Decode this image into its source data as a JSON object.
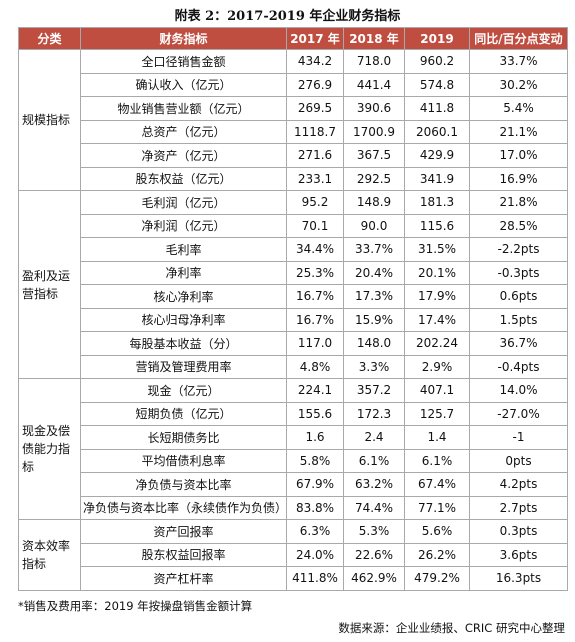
{
  "title": "附表 2：2017-2019 年企业财务指标",
  "table": {
    "headers": [
      "分类",
      "财务指标",
      "2017 年",
      "2018 年",
      "2019",
      "同比/百分点变动"
    ],
    "groups": [
      {
        "category": "规模指标",
        "rows": [
          [
            "全口径销售金额",
            "434.2",
            "718.0",
            "960.2",
            "33.7%"
          ],
          [
            "确认收入（亿元）",
            "276.9",
            "441.4",
            "574.8",
            "30.2%"
          ],
          [
            "物业销售营业额（亿元）",
            "269.5",
            "390.6",
            "411.8",
            "5.4%"
          ],
          [
            "总资产（亿元）",
            "1118.7",
            "1700.9",
            "2060.1",
            "21.1%"
          ],
          [
            "净资产（亿元）",
            "271.6",
            "367.5",
            "429.9",
            "17.0%"
          ],
          [
            "股东权益（亿元）",
            "233.1",
            "292.5",
            "341.9",
            "16.9%"
          ]
        ]
      },
      {
        "category": "盈利及运营指标",
        "rows": [
          [
            "毛利润（亿元）",
            "95.2",
            "148.9",
            "181.3",
            "21.8%"
          ],
          [
            "净利润（亿元）",
            "70.1",
            "90.0",
            "115.6",
            "28.5%"
          ],
          [
            "毛利率",
            "34.4%",
            "33.7%",
            "31.5%",
            "-2.2pts"
          ],
          [
            "净利率",
            "25.3%",
            "20.4%",
            "20.1%",
            "-0.3pts"
          ],
          [
            "核心净利率",
            "16.7%",
            "17.3%",
            "17.9%",
            "0.6pts"
          ],
          [
            "核心归母净利率",
            "16.7%",
            "15.9%",
            "17.4%",
            "1.5pts"
          ],
          [
            "每股基本收益（分）",
            "117.0",
            "148.0",
            "202.24",
            "36.7%"
          ],
          [
            "营销及管理费用率",
            "4.8%",
            "3.3%",
            "2.9%",
            "-0.4pts"
          ]
        ]
      },
      {
        "category": "现金及偿债能力指标",
        "rows": [
          [
            "现金（亿元）",
            "224.1",
            "357.2",
            "407.1",
            "14.0%"
          ],
          [
            "短期负债（亿元）",
            "155.6",
            "172.3",
            "125.7",
            "-27.0%"
          ],
          [
            "长短期债务比",
            "1.6",
            "2.4",
            "1.4",
            "-1"
          ],
          [
            "平均借债利息率",
            "5.8%",
            "6.1%",
            "6.1%",
            "0pts"
          ],
          [
            "净负债与资本比率",
            "67.9%",
            "63.2%",
            "67.4%",
            "4.2pts"
          ],
          [
            "净负债与资本比率（永续债作为负债）",
            "83.8%",
            "74.4%",
            "77.1%",
            "2.7pts"
          ]
        ]
      },
      {
        "category": "资本效率指标",
        "rows": [
          [
            "资产回报率",
            "6.3%",
            "5.3%",
            "5.6%",
            "0.3pts"
          ],
          [
            "股东权益回报率",
            "24.0%",
            "22.6%",
            "26.2%",
            "3.6pts"
          ],
          [
            "资产杠杆率",
            "411.8%",
            "462.9%",
            "479.2%",
            "16.3pts"
          ]
        ]
      }
    ]
  },
  "footnote": "*销售及费用率：2019 年按操盘销售金额计算",
  "source": "数据来源：企业业绩报、CRIC 研究中心整理"
}
